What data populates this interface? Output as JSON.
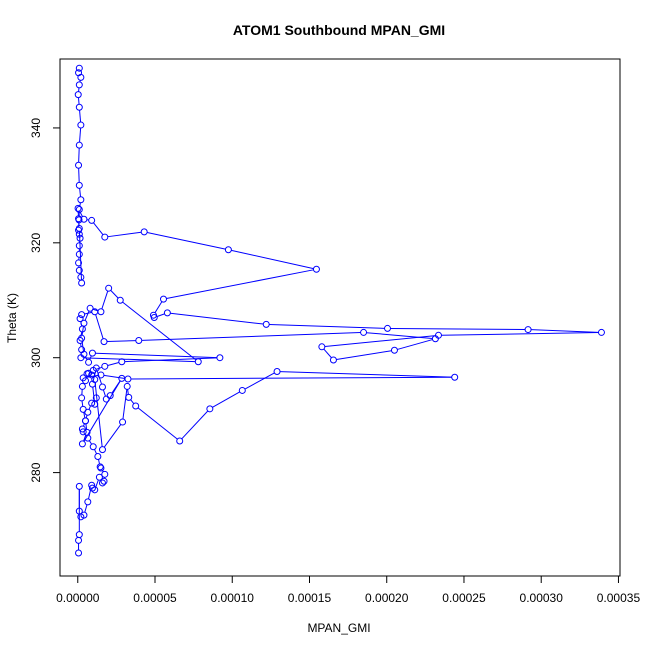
{
  "chart_data": {
    "type": "scatter",
    "title": "ATOM1 Southbound MPAN_GMI",
    "xlabel": "MPAN_GMI",
    "ylabel": "Theta (K)",
    "xlim": [
      -1.15e-05,
      0.000351
    ],
    "ylim": [
      262.0,
      352.0
    ],
    "x_ticks": [
      0.0,
      5e-05,
      0.0001,
      0.00015,
      0.0002,
      0.00025,
      0.0003,
      0.00035
    ],
    "x_tick_labels": [
      "0.00000",
      "0.00005",
      "0.00010",
      "0.00015",
      "0.00020",
      "0.00025",
      "0.00030",
      "0.00035"
    ],
    "y_ticks": [
      280,
      300,
      320,
      340
    ],
    "y_tick_labels": [
      "280",
      "300",
      "320",
      "340"
    ],
    "grid": false,
    "legend": "none",
    "color": "#0000ff",
    "series": [
      {
        "x": [
          1e-06,
          5e-07,
          2e-06,
          1e-06,
          3e-07,
          1e-06,
          2e-06,
          1e-06,
          5e-07,
          1e-06,
          2e-06,
          1e-06,
          8e-07,
          5e-07,
          1e-06,
          1.5e-06,
          1e-06,
          1e-06,
          5e-07,
          1e-06,
          2e-06,
          2.5e-06,
          1e-06,
          5e-07,
          2e-07,
          4e-06,
          9e-06,
          1.75e-05,
          4.3e-05,
          9.75e-05,
          0.0001545,
          5.55e-05,
          4.9e-05,
          4.95e-05,
          5.8e-05,
          0.000122,
          0.0002005,
          0.0002915,
          0.000339,
          0.0002335,
          0.000158,
          0.0001655,
          0.000205,
          0.0002315,
          0.000185,
          3.95e-05,
          1.7e-05,
          1.1e-05,
          2.5e-06,
          1.5e-06,
          3e-06,
          1.5e-06,
          2.5e-06,
          2e-06,
          7.8e-05,
          2.75e-05,
          2e-05,
          1.5e-05,
          8e-06,
          4e-06,
          2.5e-06,
          4e-06,
          7e-06,
          9.5e-06,
          9.2e-05,
          2.85e-05,
          1.75e-05,
          1e-05,
          6e-06,
          3.5e-06,
          1.5e-05,
          3.25e-05,
          0.000244,
          0.000129,
          0.0001065,
          8.55e-05,
          6.6e-05,
          3.75e-05,
          3.3e-05,
          3.2e-05,
          2.9e-05,
          1.6e-05,
          1.1e-05,
          9e-06,
          7e-06,
          5e-06,
          3e-06,
          2.5e-06,
          3.5e-06,
          5e-06,
          6e-06,
          3e-06,
          2.85e-05,
          2.1e-05,
          1.85e-05,
          1.6e-05,
          1.2e-05,
          9.5e-06,
          1.1e-05,
          1.2e-05,
          9e-06,
          6.5e-06,
          5e-06,
          3e-06,
          3.5e-06,
          6.5e-06,
          1e-05,
          1.3e-05,
          1.45e-05,
          1.5e-05,
          1.75e-05,
          1.7e-05,
          1.6e-05,
          1.4e-05,
          1.1e-05,
          9.5e-06,
          9e-06,
          6.5e-06,
          4e-06,
          2e-06,
          1e-06,
          1e-06,
          1e-06,
          5e-07,
          5e-07
        ],
        "y": [
          350.4,
          349.6,
          348.8,
          347.5,
          345.8,
          343.6,
          340.5,
          337.0,
          333.5,
          330.0,
          327.5,
          325.8,
          324.0,
          322.2,
          321.5,
          320.8,
          319.5,
          318.0,
          316.5,
          315.2,
          314.0,
          313.0,
          322.5,
          324.2,
          326.0,
          324.1,
          323.9,
          321.0,
          321.9,
          318.8,
          315.4,
          310.2,
          307.4,
          307.0,
          307.8,
          305.8,
          305.1,
          304.9,
          304.4,
          303.9,
          301.9,
          299.6,
          301.3,
          303.3,
          304.4,
          303.0,
          302.8,
          308.0,
          307.5,
          306.8,
          305.0,
          303.0,
          301.4,
          300.0,
          299.3,
          310.0,
          312.1,
          308.0,
          308.6,
          306.0,
          303.4,
          300.6,
          299.2,
          300.8,
          300.0,
          299.3,
          298.5,
          297.8,
          297.2,
          296.5,
          297.0,
          296.3,
          296.6,
          297.6,
          294.3,
          291.1,
          285.5,
          291.6,
          293.1,
          295.0,
          288.8,
          284.0,
          296.2,
          297.0,
          297.3,
          296.0,
          295.0,
          293.0,
          291.0,
          289.0,
          287.0,
          285.0,
          296.4,
          293.4,
          292.8,
          294.9,
          298.2,
          295.4,
          291.9,
          293.0,
          292.1,
          290.5,
          289.0,
          287.6,
          287.1,
          286.0,
          284.5,
          282.8,
          281.0,
          280.8,
          279.7,
          278.5,
          278.2,
          279.2,
          277.0,
          277.3,
          277.8,
          274.9,
          272.6,
          272.3,
          273.3,
          277.6,
          269.2,
          268.2,
          266.0
        ]
      }
    ]
  }
}
